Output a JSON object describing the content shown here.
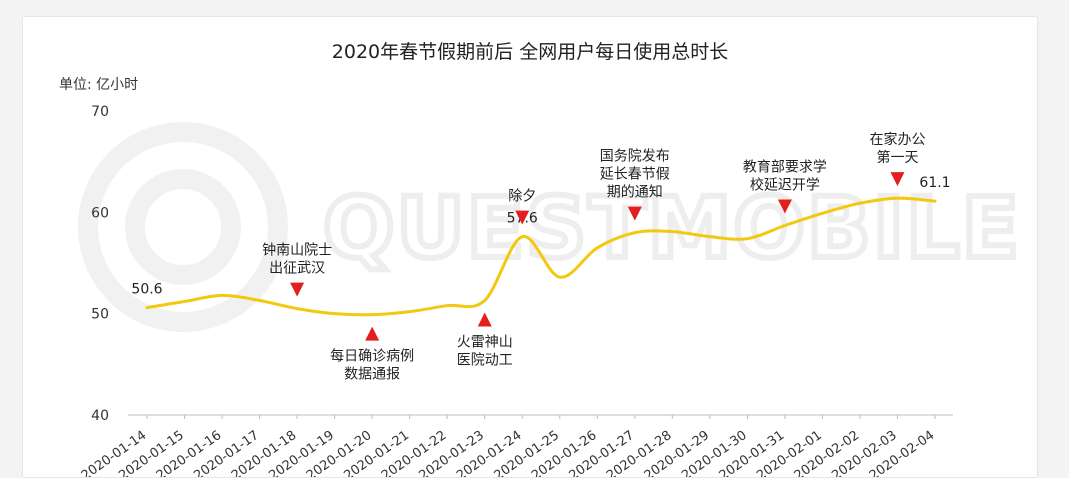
{
  "chart_data": {
    "type": "line",
    "title": "2020年春节假期前后 全网用户每日使用总时长",
    "unit_label": "单位: 亿小时",
    "ylim": [
      40,
      70
    ],
    "yticks": [
      40,
      50,
      60,
      70
    ],
    "grid": false,
    "categories": [
      "01-14",
      "01-15",
      "01-16",
      "01-17",
      "01-18",
      "01-19",
      "01-20",
      "01-21",
      "01-22",
      "01-23",
      "01-24",
      "01-25",
      "01-26",
      "01-27",
      "01-28",
      "01-29",
      "01-30",
      "01-31",
      "02-01",
      "02-02",
      "02-03",
      "02-04"
    ],
    "values": [
      50.6,
      51.2,
      51.8,
      51.3,
      50.5,
      50.0,
      49.9,
      50.2,
      50.8,
      51.3,
      57.6,
      53.6,
      56.5,
      58.0,
      58.1,
      57.6,
      57.4,
      58.7,
      59.9,
      60.9,
      61.4,
      61.1
    ],
    "line_color": "#f2c811",
    "marker_color": "#e41e1e",
    "data_labels": [
      {
        "category": "01-14",
        "text": "50.6"
      },
      {
        "category": "01-24",
        "text": "57.6"
      },
      {
        "category": "02-04",
        "text": "61.1"
      }
    ],
    "annotations": [
      {
        "category": "01-18",
        "lines": [
          "钟南山院士",
          "出征武汉"
        ],
        "position": "above"
      },
      {
        "category": "01-20",
        "lines": [
          "每日确诊病例",
          "数据通报"
        ],
        "position": "below"
      },
      {
        "category": "01-23",
        "lines": [
          "火雷神山",
          "医院动工"
        ],
        "position": "below"
      },
      {
        "category": "01-24",
        "lines": [
          "除夕"
        ],
        "position": "above"
      },
      {
        "category": "01-27",
        "lines": [
          "国务院发布",
          "延长春节假",
          "期的通知"
        ],
        "position": "above"
      },
      {
        "category": "01-31",
        "lines": [
          "教育部要求学",
          "校延迟开学"
        ],
        "position": "above"
      },
      {
        "category": "02-03",
        "lines": [
          "在家办公",
          "第一天"
        ],
        "position": "above"
      }
    ],
    "watermark": "QUESTMOBILE"
  }
}
